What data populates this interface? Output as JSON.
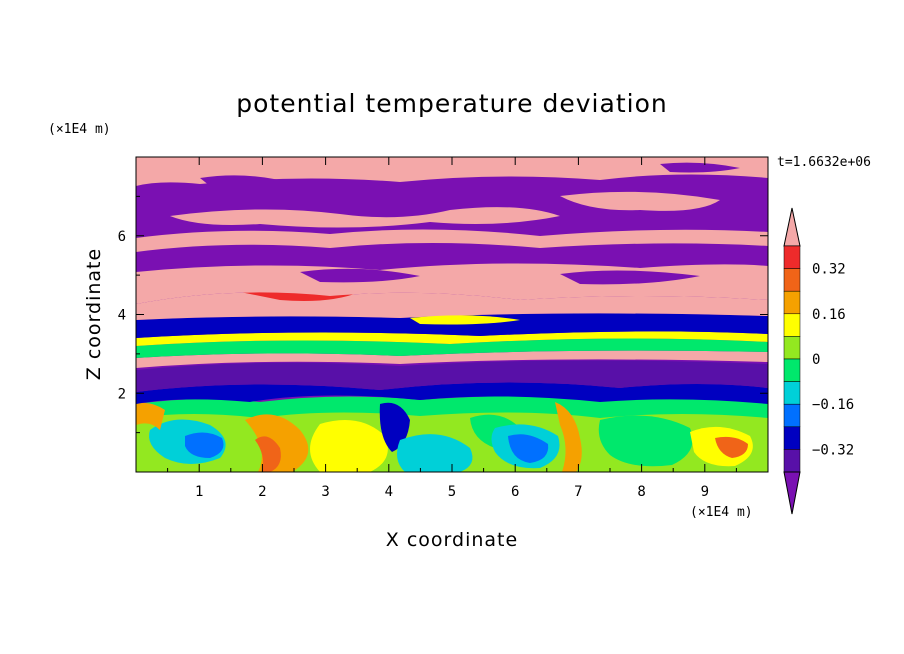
{
  "chart_data": {
    "type": "heatmap",
    "title": "potential temperature deviation",
    "xlabel": "X coordinate",
    "ylabel": "Z coordinate",
    "x_unit": "(×1E4 m)",
    "y_unit": "(×1E4 m)",
    "time_label": "t=1.6632e+06",
    "x_range": [
      0,
      10
    ],
    "y_range": [
      0,
      8
    ],
    "x_ticks": [
      1,
      2,
      3,
      4,
      5,
      6,
      7,
      8,
      9
    ],
    "y_ticks": [
      2,
      4,
      6
    ],
    "colorbar": {
      "levels": [
        -0.4,
        -0.32,
        -0.24,
        -0.16,
        -0.08,
        0,
        0.08,
        0.16,
        0.24,
        0.32,
        0.4
      ],
      "labels": [
        "0.32",
        "0.16",
        "0",
        "−0.16",
        "−0.32"
      ],
      "label_values": [
        0.32,
        0.16,
        0,
        -0.16,
        -0.32
      ],
      "colors_top_to_bottom": [
        "#f4a8a8",
        "#ee2b2b",
        "#f06418",
        "#f5a100",
        "#ffff00",
        "#93e820",
        "#00e86c",
        "#00d0d8",
        "#0070ff",
        "#0000c0",
        "#5810a8",
        "#7a10b2"
      ],
      "extend": "both"
    },
    "fields": {
      "upper_layer_high": "#f4a8a8",
      "upper_layer_low": "#7a10b2",
      "lower_layer": "#93e820"
    }
  }
}
